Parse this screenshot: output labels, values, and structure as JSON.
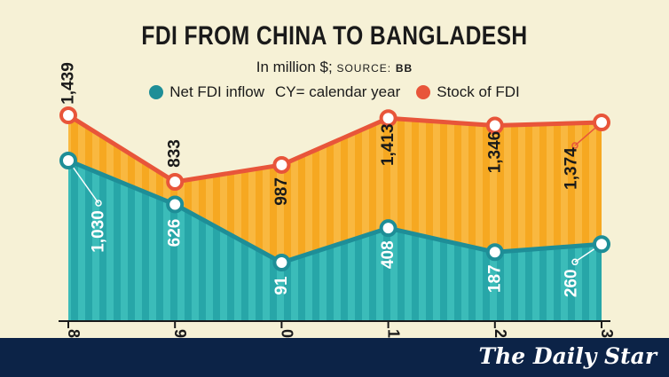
{
  "header": {
    "title": "FDI FROM CHINA TO BANGLADESH",
    "subtitle_unit": "In million $;",
    "source_label": "SOURCE:",
    "source_value": "BB"
  },
  "legend": {
    "net_label": "Net FDI inflow",
    "note": "CY= calendar year",
    "stock_label": "Stock of FDI"
  },
  "colors": {
    "net": "#1e8e97",
    "net_fill": "#2fb1b1",
    "stock": "#e8553a",
    "stock_fill": "#f6a821",
    "line_dark": "#1a1a1a",
    "footer": "#0c2347"
  },
  "chart_data": {
    "type": "area",
    "x": [
      "8",
      "9",
      "0",
      "1",
      "2",
      "3"
    ],
    "series": [
      {
        "name": "Stock of FDI",
        "values": [
          1439,
          833,
          987,
          1413,
          1346,
          1374
        ],
        "labels": [
          "1,439",
          "833",
          "987",
          "1,413",
          "1,346",
          "1,374"
        ]
      },
      {
        "name": "Net FDI inflow",
        "values": [
          1030,
          626,
          91,
          408,
          187,
          260
        ],
        "labels": [
          "1,030",
          "626",
          "91",
          "408",
          "187",
          "260"
        ]
      }
    ],
    "title": "FDI FROM CHINA TO BANGLADESH",
    "ylabel": "In million $",
    "grid": false
  },
  "footer": {
    "brand": "The Daily Star"
  }
}
